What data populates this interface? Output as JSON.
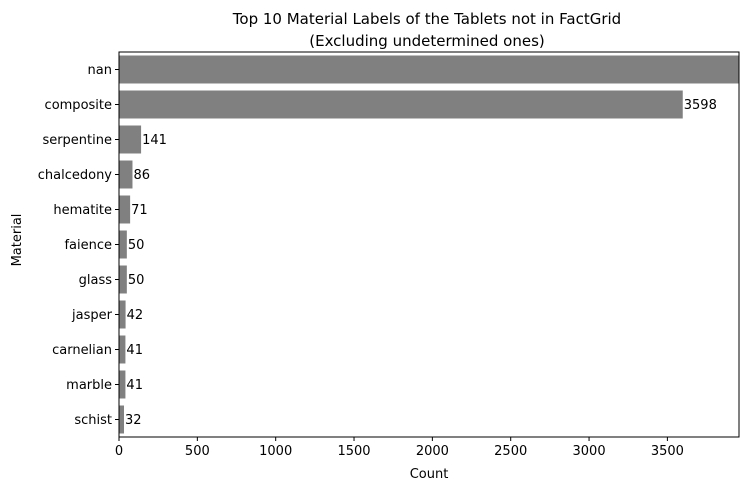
{
  "chart_data": {
    "type": "bar",
    "orientation": "horizontal",
    "title": "Top 10 Material Labels of the Tablets not in FactGrid",
    "subtitle": "(Excluding undetermined ones)",
    "xlabel": "Count",
    "ylabel": "Material",
    "categories": [
      "nan",
      "composite",
      "serpentine",
      "chalcedony",
      "hematite",
      "faience",
      "glass",
      "jasper",
      "carnelian",
      "marble",
      "schist"
    ],
    "values": [
      3957,
      3598,
      141,
      86,
      71,
      50,
      50,
      42,
      41,
      41,
      32
    ],
    "data_labels": [
      "",
      "3598",
      "141",
      "86",
      "71",
      "50",
      "50",
      "42",
      "41",
      "41",
      "32"
    ],
    "xlim": [
      0,
      3957
    ],
    "xticks": [
      0,
      500,
      1000,
      1500,
      2000,
      2500,
      3000,
      3500
    ],
    "grid": false,
    "bar_color": "#808080"
  }
}
